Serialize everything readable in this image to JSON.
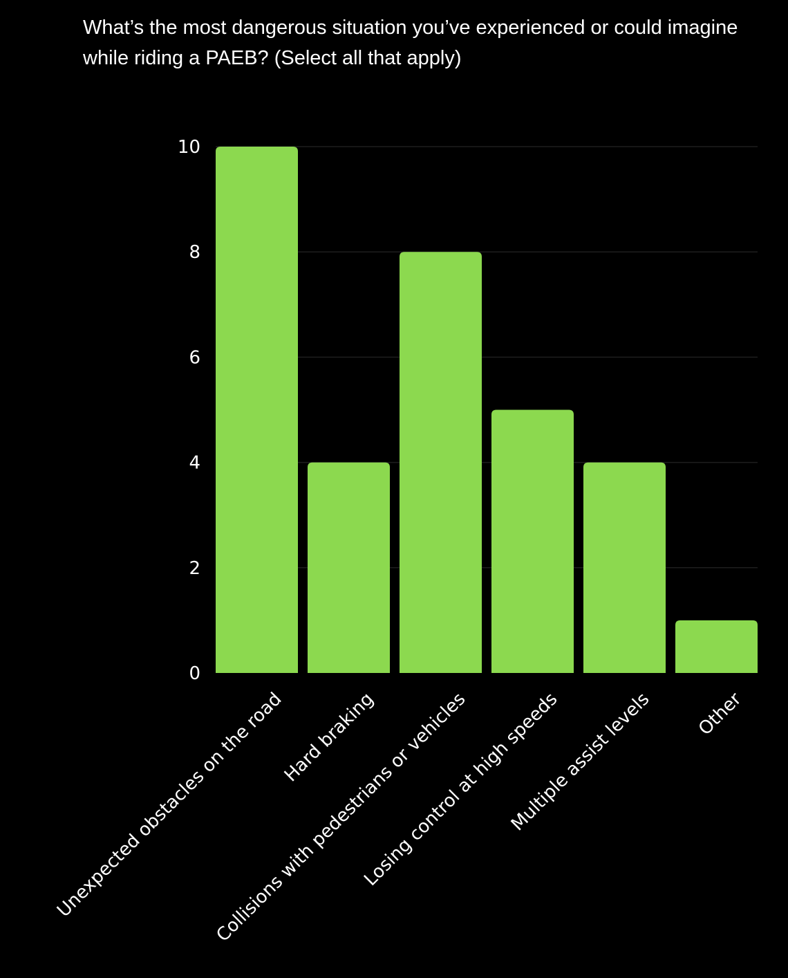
{
  "chart_data": {
    "type": "bar",
    "title": "What’s the most dangerous situation you’ve experienced or could imagine while riding a PAEB? (Select all that apply)",
    "categories": [
      "Unexpected obstacles on the road",
      "Hard braking",
      "Collisions with pedestrians or vehicles",
      "Losing control at high speeds",
      "Multiple assist levels",
      "Other"
    ],
    "values": [
      10,
      4,
      8,
      5,
      4,
      1
    ],
    "ylim": [
      0,
      10
    ],
    "yticks": [
      0,
      2,
      4,
      6,
      8,
      10
    ],
    "grid": true,
    "bar_color": "#8cd94f",
    "background_color": "#000000",
    "gridline_color": "#1e1e1e",
    "text_color": "#ffffff"
  }
}
